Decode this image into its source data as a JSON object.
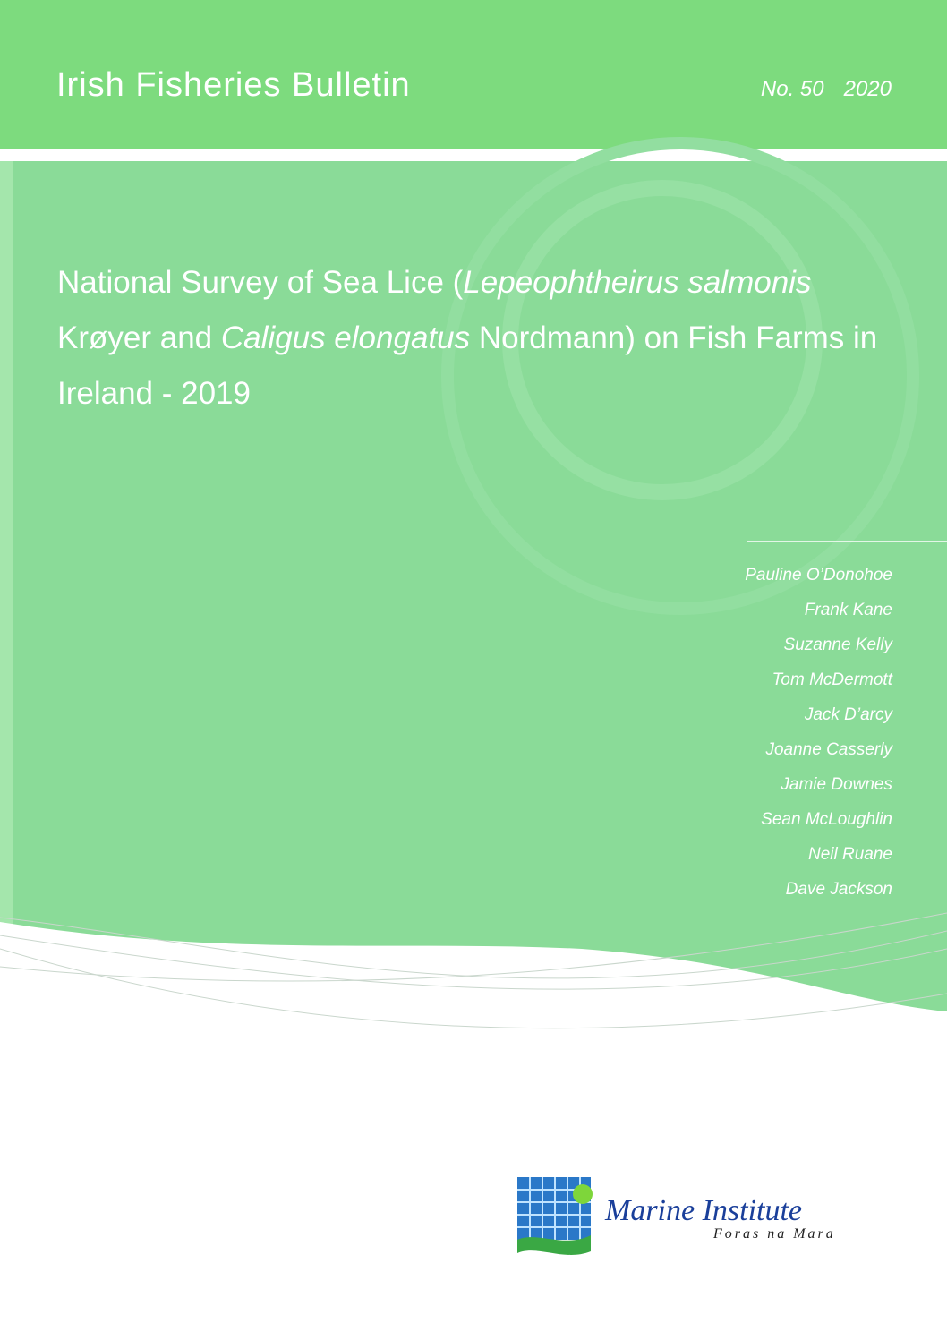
{
  "header": {
    "series": "Irish Fisheries Bulletin",
    "issue": "No. 50",
    "year": "2020"
  },
  "title": [
    "National Survey of Sea Lice (",
    "Lepeophtheirus salmonis",
    " Krøyer and ",
    "Caligus elongatus",
    " Nordmann) on Fish Farms in Ireland - 2019"
  ],
  "authors": [
    "Pauline O’Donohoe",
    "Frank Kane",
    "Suzanne Kelly",
    "Tom McDermott",
    "Jack D’arcy",
    "Joanne Casserly",
    "Jamie Downes",
    "Sean McLoughlin",
    "Neil Ruane",
    "Dave Jackson"
  ],
  "logo": {
    "name": "Marine Institute",
    "subtitle": "Foras na Mara"
  }
}
